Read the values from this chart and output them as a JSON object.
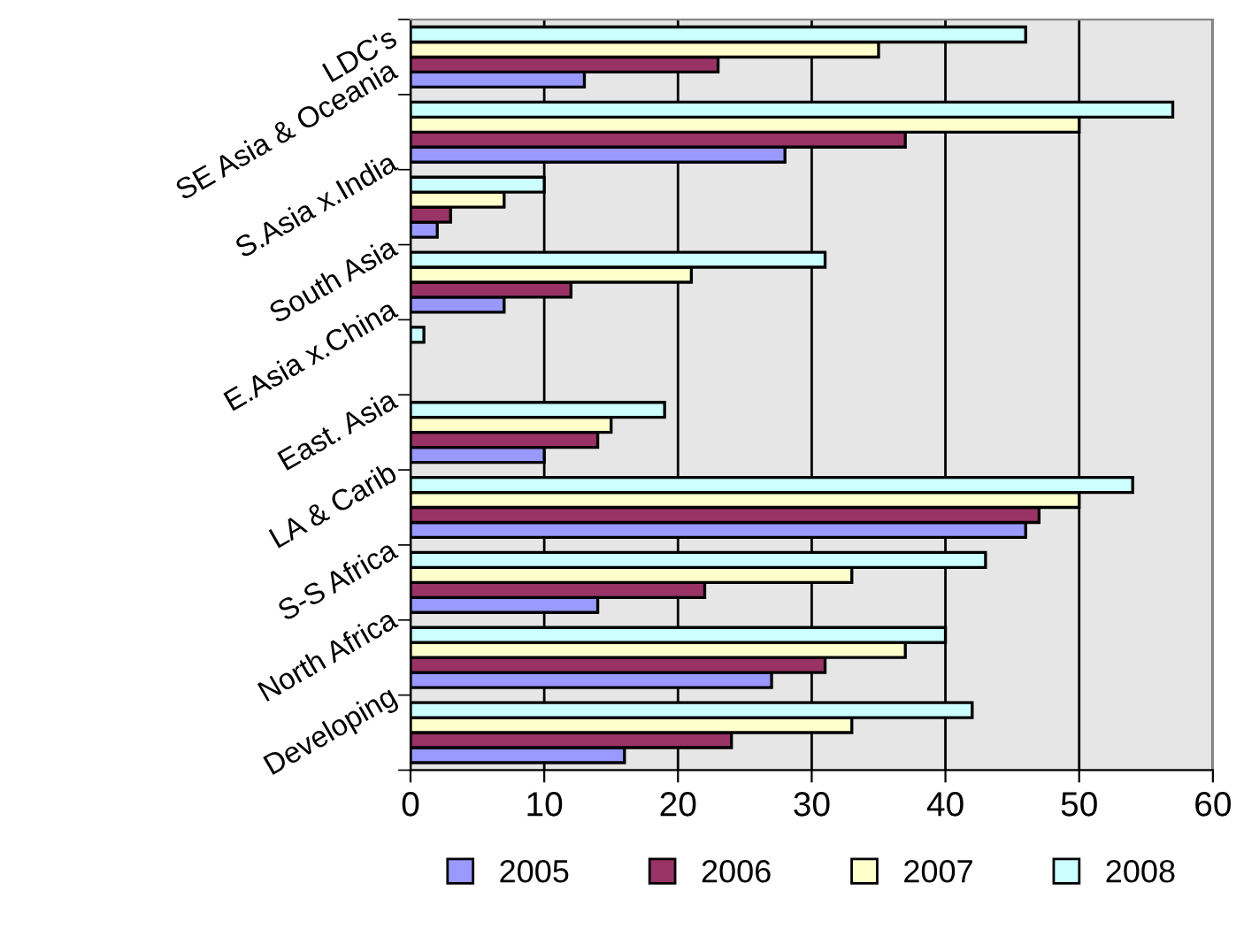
{
  "chart_data": {
    "type": "bar",
    "orientation": "horizontal",
    "categories": [
      "LDC's",
      "SE Asia & Oceania",
      "S.Asia x.India",
      "South Asia",
      "E.Asia x.China",
      "East. Asia",
      "LA & Carib",
      "S-S Africa",
      "North Africa",
      "Developing"
    ],
    "series": [
      {
        "name": "2005",
        "color": "#9999ff",
        "values": [
          13,
          28,
          2,
          7,
          null,
          10,
          46,
          14,
          27,
          16
        ]
      },
      {
        "name": "2006",
        "color": "#993366",
        "values": [
          23,
          37,
          3,
          12,
          null,
          14,
          47,
          22,
          31,
          24
        ]
      },
      {
        "name": "2007",
        "color": "#ffffcc",
        "values": [
          35,
          50,
          7,
          21,
          null,
          15,
          50,
          33,
          37,
          33
        ]
      },
      {
        "name": "2008",
        "color": "#ccffff",
        "values": [
          46,
          57,
          10,
          31,
          1,
          19,
          54,
          43,
          40,
          42
        ]
      }
    ],
    "xlim": [
      0,
      60
    ],
    "xticks": [
      0,
      10,
      20,
      30,
      40,
      50,
      60
    ],
    "grid": "x",
    "legend": "bottom"
  }
}
